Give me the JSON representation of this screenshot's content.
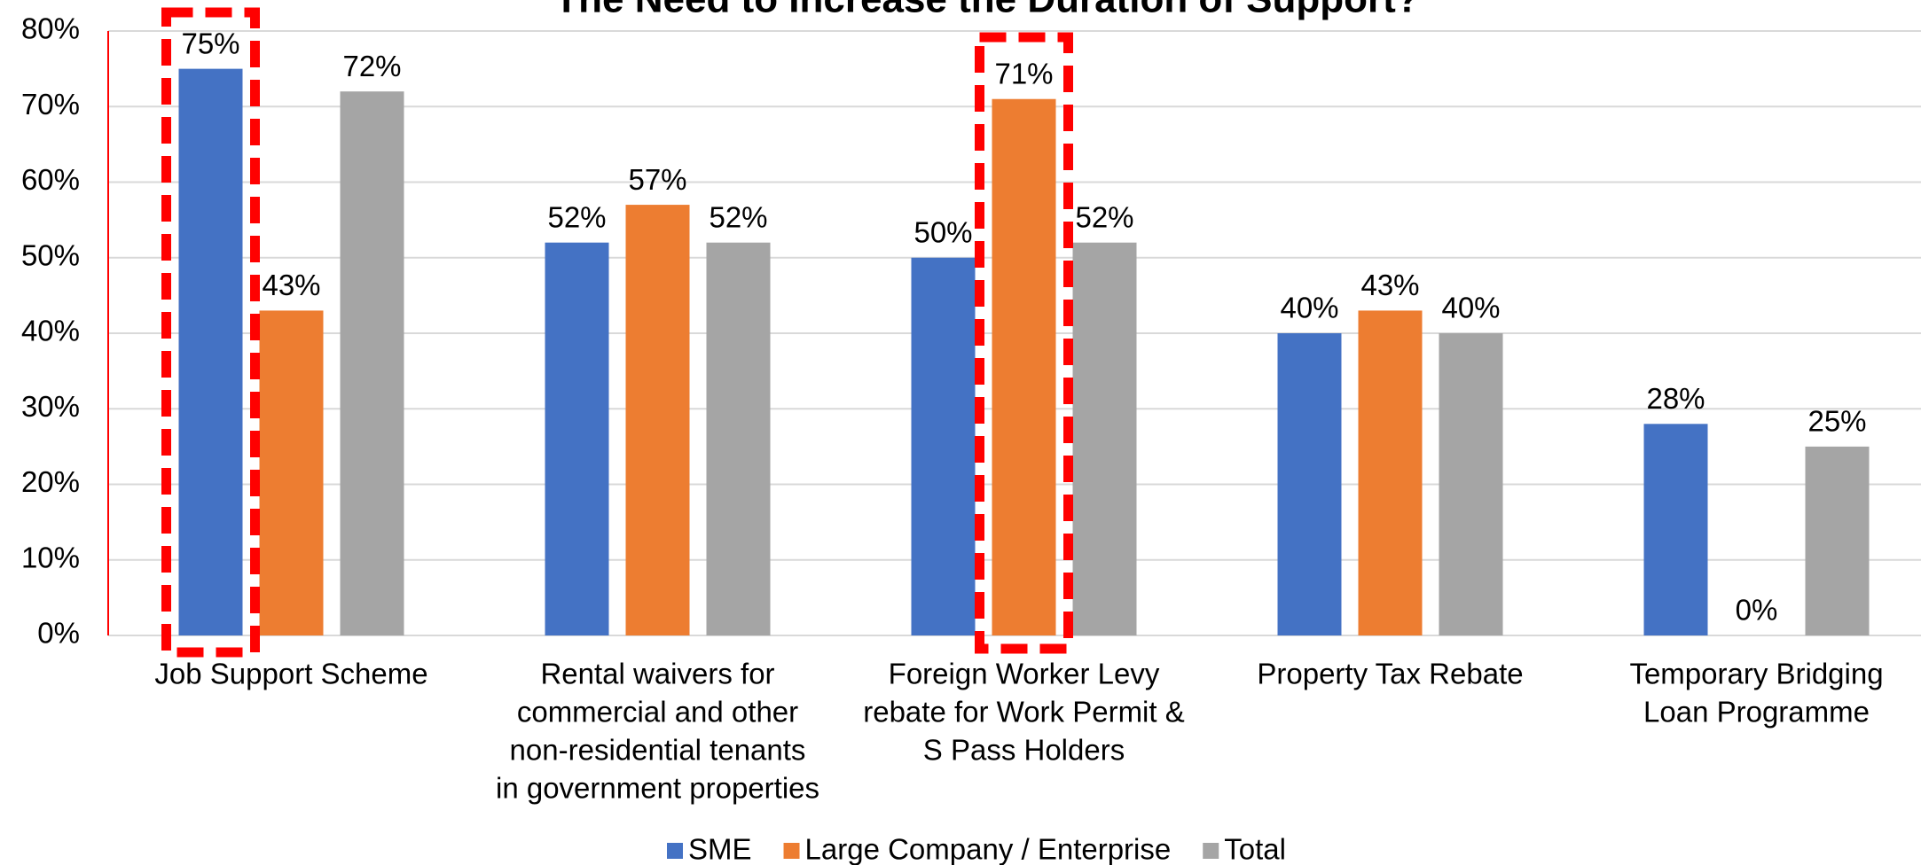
{
  "chart_data": {
    "type": "bar",
    "title": "The Need to Increase the Duration of Support?",
    "categories": [
      [
        "Job Support Scheme"
      ],
      [
        "Rental waivers for",
        "commercial and other",
        "non-residential tenants",
        "in government properties"
      ],
      [
        "Foreign Worker Levy",
        "rebate for Work Permit &",
        "S Pass Holders"
      ],
      [
        "Property Tax Rebate"
      ],
      [
        "Temporary Bridging",
        "Loan Programme"
      ]
    ],
    "series": [
      {
        "name": "SME",
        "color": "#4472c4",
        "values": [
          75,
          52,
          50,
          40,
          28
        ],
        "value_labels": [
          "75%",
          "52%",
          "50%",
          "40%",
          "28%"
        ]
      },
      {
        "name": "Large Company / Enterprise",
        "color": "#ed7d31",
        "values": [
          43,
          57,
          71,
          43,
          0
        ],
        "value_labels": [
          "43%",
          "57%",
          "71%",
          "43%",
          "0%"
        ]
      },
      {
        "name": "Total",
        "color": "#a5a5a5",
        "values": [
          72,
          52,
          52,
          40,
          25
        ],
        "value_labels": [
          "72%",
          "52%",
          "52%",
          "40%",
          "25%"
        ]
      }
    ],
    "ylim": [
      0,
      80
    ],
    "yticks": [
      {
        "value": 0,
        "label": "0%"
      },
      {
        "value": 10,
        "label": "10%"
      },
      {
        "value": 20,
        "label": "20%"
      },
      {
        "value": 30,
        "label": "30%"
      },
      {
        "value": 40,
        "label": "40%"
      },
      {
        "value": 50,
        "label": "50%"
      },
      {
        "value": 60,
        "label": "60%"
      },
      {
        "value": 70,
        "label": "70%"
      },
      {
        "value": 80,
        "label": "80%"
      }
    ],
    "grid": true,
    "legend": "bottom"
  }
}
